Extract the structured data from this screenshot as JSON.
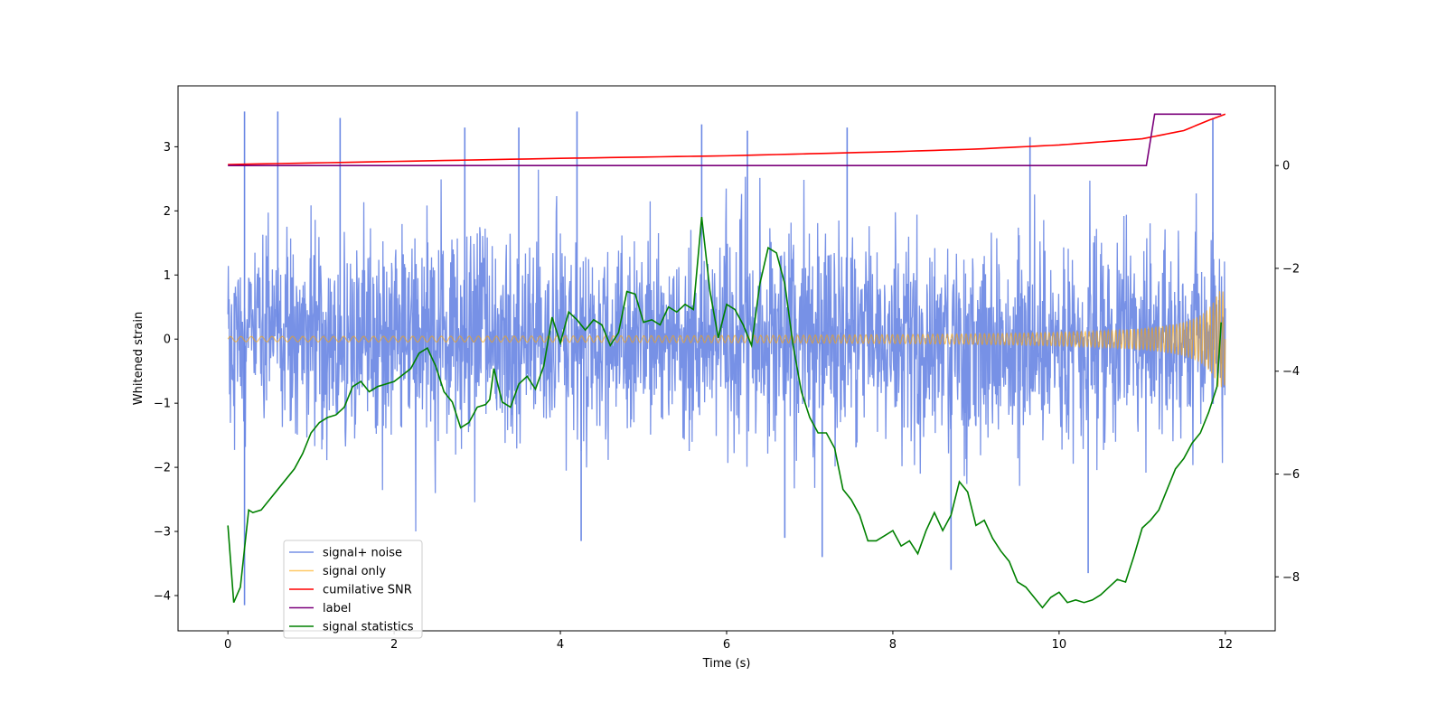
{
  "chart_data": {
    "type": "line",
    "title": "",
    "xlabel": "Time (s)",
    "ylabel": "Whitened strain",
    "xlim": [
      -0.6,
      12.6
    ],
    "ylim": [
      -4.55,
      3.95
    ],
    "y2lim": [
      -9.05,
      1.55
    ],
    "x_ticks": [
      0,
      2,
      4,
      6,
      8,
      10,
      12
    ],
    "y_ticks": [
      -4,
      -3,
      -2,
      -1,
      0,
      1,
      2,
      3
    ],
    "y2_ticks": [
      -8,
      -6,
      -4,
      -2,
      0
    ],
    "grid": false,
    "legend_position": "lower-left",
    "series": [
      {
        "name": "signal+ noise",
        "axis": "left",
        "color": "#6b88e4",
        "description": "whitened strain, dense noise, std approx 0.8",
        "x_range": [
          0,
          12
        ],
        "noise_std": 0.8,
        "spikes": [
          [
            0.2,
            3.55
          ],
          [
            0.6,
            3.55
          ],
          [
            1.35,
            3.45
          ],
          [
            2.85,
            3.3
          ],
          [
            3.5,
            3.3
          ],
          [
            4.2,
            3.55
          ],
          [
            5.7,
            3.35
          ],
          [
            6.25,
            3.25
          ],
          [
            7.45,
            3.3
          ],
          [
            9.65,
            3.15
          ],
          [
            11.85,
            3.45
          ],
          [
            0.2,
            -4.15
          ],
          [
            4.25,
            -3.15
          ],
          [
            6.7,
            -3.1
          ],
          [
            7.15,
            -3.4
          ],
          [
            8.7,
            -3.6
          ],
          [
            10.35,
            -3.65
          ]
        ]
      },
      {
        "name": "signal only",
        "axis": "left",
        "color": "#ffa500",
        "description": "chirp, amplitude grows from about 0.02 to 0.75 near t = 12",
        "x_range": [
          0,
          12
        ],
        "end_amplitude": 0.75
      },
      {
        "name": "cumilative SNR",
        "axis": "right",
        "color": "#ff0000",
        "points": [
          [
            0,
            0.02
          ],
          [
            2,
            0.08
          ],
          [
            4,
            0.14
          ],
          [
            6,
            0.19
          ],
          [
            8,
            0.27
          ],
          [
            9,
            0.32
          ],
          [
            10,
            0.4
          ],
          [
            10.5,
            0.46
          ],
          [
            11,
            0.52
          ],
          [
            11.5,
            0.68
          ],
          [
            11.8,
            0.88
          ],
          [
            12,
            1.0
          ]
        ]
      },
      {
        "name": "label",
        "axis": "right",
        "color": "#7b007b",
        "points": [
          [
            0,
            0
          ],
          [
            11.05,
            0
          ],
          [
            11.15,
            1
          ],
          [
            11.95,
            1
          ]
        ]
      },
      {
        "name": "signal statistics",
        "axis": "right",
        "color": "#008000",
        "points": [
          [
            0,
            -7.0
          ],
          [
            0.07,
            -8.5
          ],
          [
            0.15,
            -8.2
          ],
          [
            0.25,
            -6.7
          ],
          [
            0.3,
            -6.75
          ],
          [
            0.4,
            -6.7
          ],
          [
            0.6,
            -6.3
          ],
          [
            0.8,
            -5.9
          ],
          [
            0.9,
            -5.6
          ],
          [
            1.0,
            -5.2
          ],
          [
            1.1,
            -5.0
          ],
          [
            1.2,
            -4.9
          ],
          [
            1.3,
            -4.85
          ],
          [
            1.4,
            -4.7
          ],
          [
            1.5,
            -4.3
          ],
          [
            1.6,
            -4.2
          ],
          [
            1.7,
            -4.4
          ],
          [
            1.8,
            -4.3
          ],
          [
            2.0,
            -4.2
          ],
          [
            2.2,
            -3.95
          ],
          [
            2.3,
            -3.65
          ],
          [
            2.4,
            -3.55
          ],
          [
            2.5,
            -3.9
          ],
          [
            2.6,
            -4.4
          ],
          [
            2.7,
            -4.6
          ],
          [
            2.8,
            -5.1
          ],
          [
            2.9,
            -5.0
          ],
          [
            3.0,
            -4.7
          ],
          [
            3.1,
            -4.65
          ],
          [
            3.15,
            -4.55
          ],
          [
            3.2,
            -3.95
          ],
          [
            3.3,
            -4.6
          ],
          [
            3.4,
            -4.7
          ],
          [
            3.5,
            -4.25
          ],
          [
            3.6,
            -4.1
          ],
          [
            3.7,
            -4.35
          ],
          [
            3.8,
            -3.9
          ],
          [
            3.9,
            -2.95
          ],
          [
            4.0,
            -3.45
          ],
          [
            4.1,
            -2.85
          ],
          [
            4.2,
            -3.0
          ],
          [
            4.3,
            -3.2
          ],
          [
            4.4,
            -3.0
          ],
          [
            4.5,
            -3.1
          ],
          [
            4.6,
            -3.5
          ],
          [
            4.7,
            -3.25
          ],
          [
            4.8,
            -2.45
          ],
          [
            4.9,
            -2.5
          ],
          [
            5.0,
            -3.05
          ],
          [
            5.1,
            -3.0
          ],
          [
            5.2,
            -3.1
          ],
          [
            5.3,
            -2.75
          ],
          [
            5.4,
            -2.85
          ],
          [
            5.5,
            -2.7
          ],
          [
            5.6,
            -2.8
          ],
          [
            5.7,
            -1.0
          ],
          [
            5.8,
            -2.45
          ],
          [
            5.9,
            -3.35
          ],
          [
            6.0,
            -2.7
          ],
          [
            6.1,
            -2.8
          ],
          [
            6.2,
            -3.1
          ],
          [
            6.3,
            -3.5
          ],
          [
            6.4,
            -2.3
          ],
          [
            6.5,
            -1.6
          ],
          [
            6.6,
            -1.7
          ],
          [
            6.7,
            -2.3
          ],
          [
            6.8,
            -3.5
          ],
          [
            6.9,
            -4.4
          ],
          [
            7.0,
            -4.9
          ],
          [
            7.1,
            -5.2
          ],
          [
            7.2,
            -5.2
          ],
          [
            7.3,
            -5.5
          ],
          [
            7.4,
            -6.3
          ],
          [
            7.5,
            -6.5
          ],
          [
            7.6,
            -6.8
          ],
          [
            7.7,
            -7.3
          ],
          [
            7.8,
            -7.3
          ],
          [
            7.9,
            -7.2
          ],
          [
            8.0,
            -7.1
          ],
          [
            8.1,
            -7.4
          ],
          [
            8.2,
            -7.3
          ],
          [
            8.3,
            -7.55
          ],
          [
            8.4,
            -7.1
          ],
          [
            8.5,
            -6.75
          ],
          [
            8.6,
            -7.1
          ],
          [
            8.7,
            -6.8
          ],
          [
            8.8,
            -6.15
          ],
          [
            8.9,
            -6.35
          ],
          [
            9.0,
            -7.0
          ],
          [
            9.1,
            -6.9
          ],
          [
            9.2,
            -7.25
          ],
          [
            9.3,
            -7.5
          ],
          [
            9.4,
            -7.7
          ],
          [
            9.5,
            -8.1
          ],
          [
            9.6,
            -8.2
          ],
          [
            9.7,
            -8.4
          ],
          [
            9.8,
            -8.6
          ],
          [
            9.9,
            -8.4
          ],
          [
            10.0,
            -8.3
          ],
          [
            10.1,
            -8.5
          ],
          [
            10.2,
            -8.45
          ],
          [
            10.3,
            -8.5
          ],
          [
            10.4,
            -8.45
          ],
          [
            10.5,
            -8.35
          ],
          [
            10.6,
            -8.2
          ],
          [
            10.7,
            -8.05
          ],
          [
            10.8,
            -8.1
          ],
          [
            10.9,
            -7.6
          ],
          [
            11.0,
            -7.05
          ],
          [
            11.1,
            -6.9
          ],
          [
            11.2,
            -6.7
          ],
          [
            11.3,
            -6.3
          ],
          [
            11.4,
            -5.9
          ],
          [
            11.5,
            -5.7
          ],
          [
            11.6,
            -5.4
          ],
          [
            11.7,
            -5.2
          ],
          [
            11.8,
            -4.8
          ],
          [
            11.9,
            -4.3
          ],
          [
            11.95,
            -3.05
          ]
        ]
      }
    ]
  }
}
